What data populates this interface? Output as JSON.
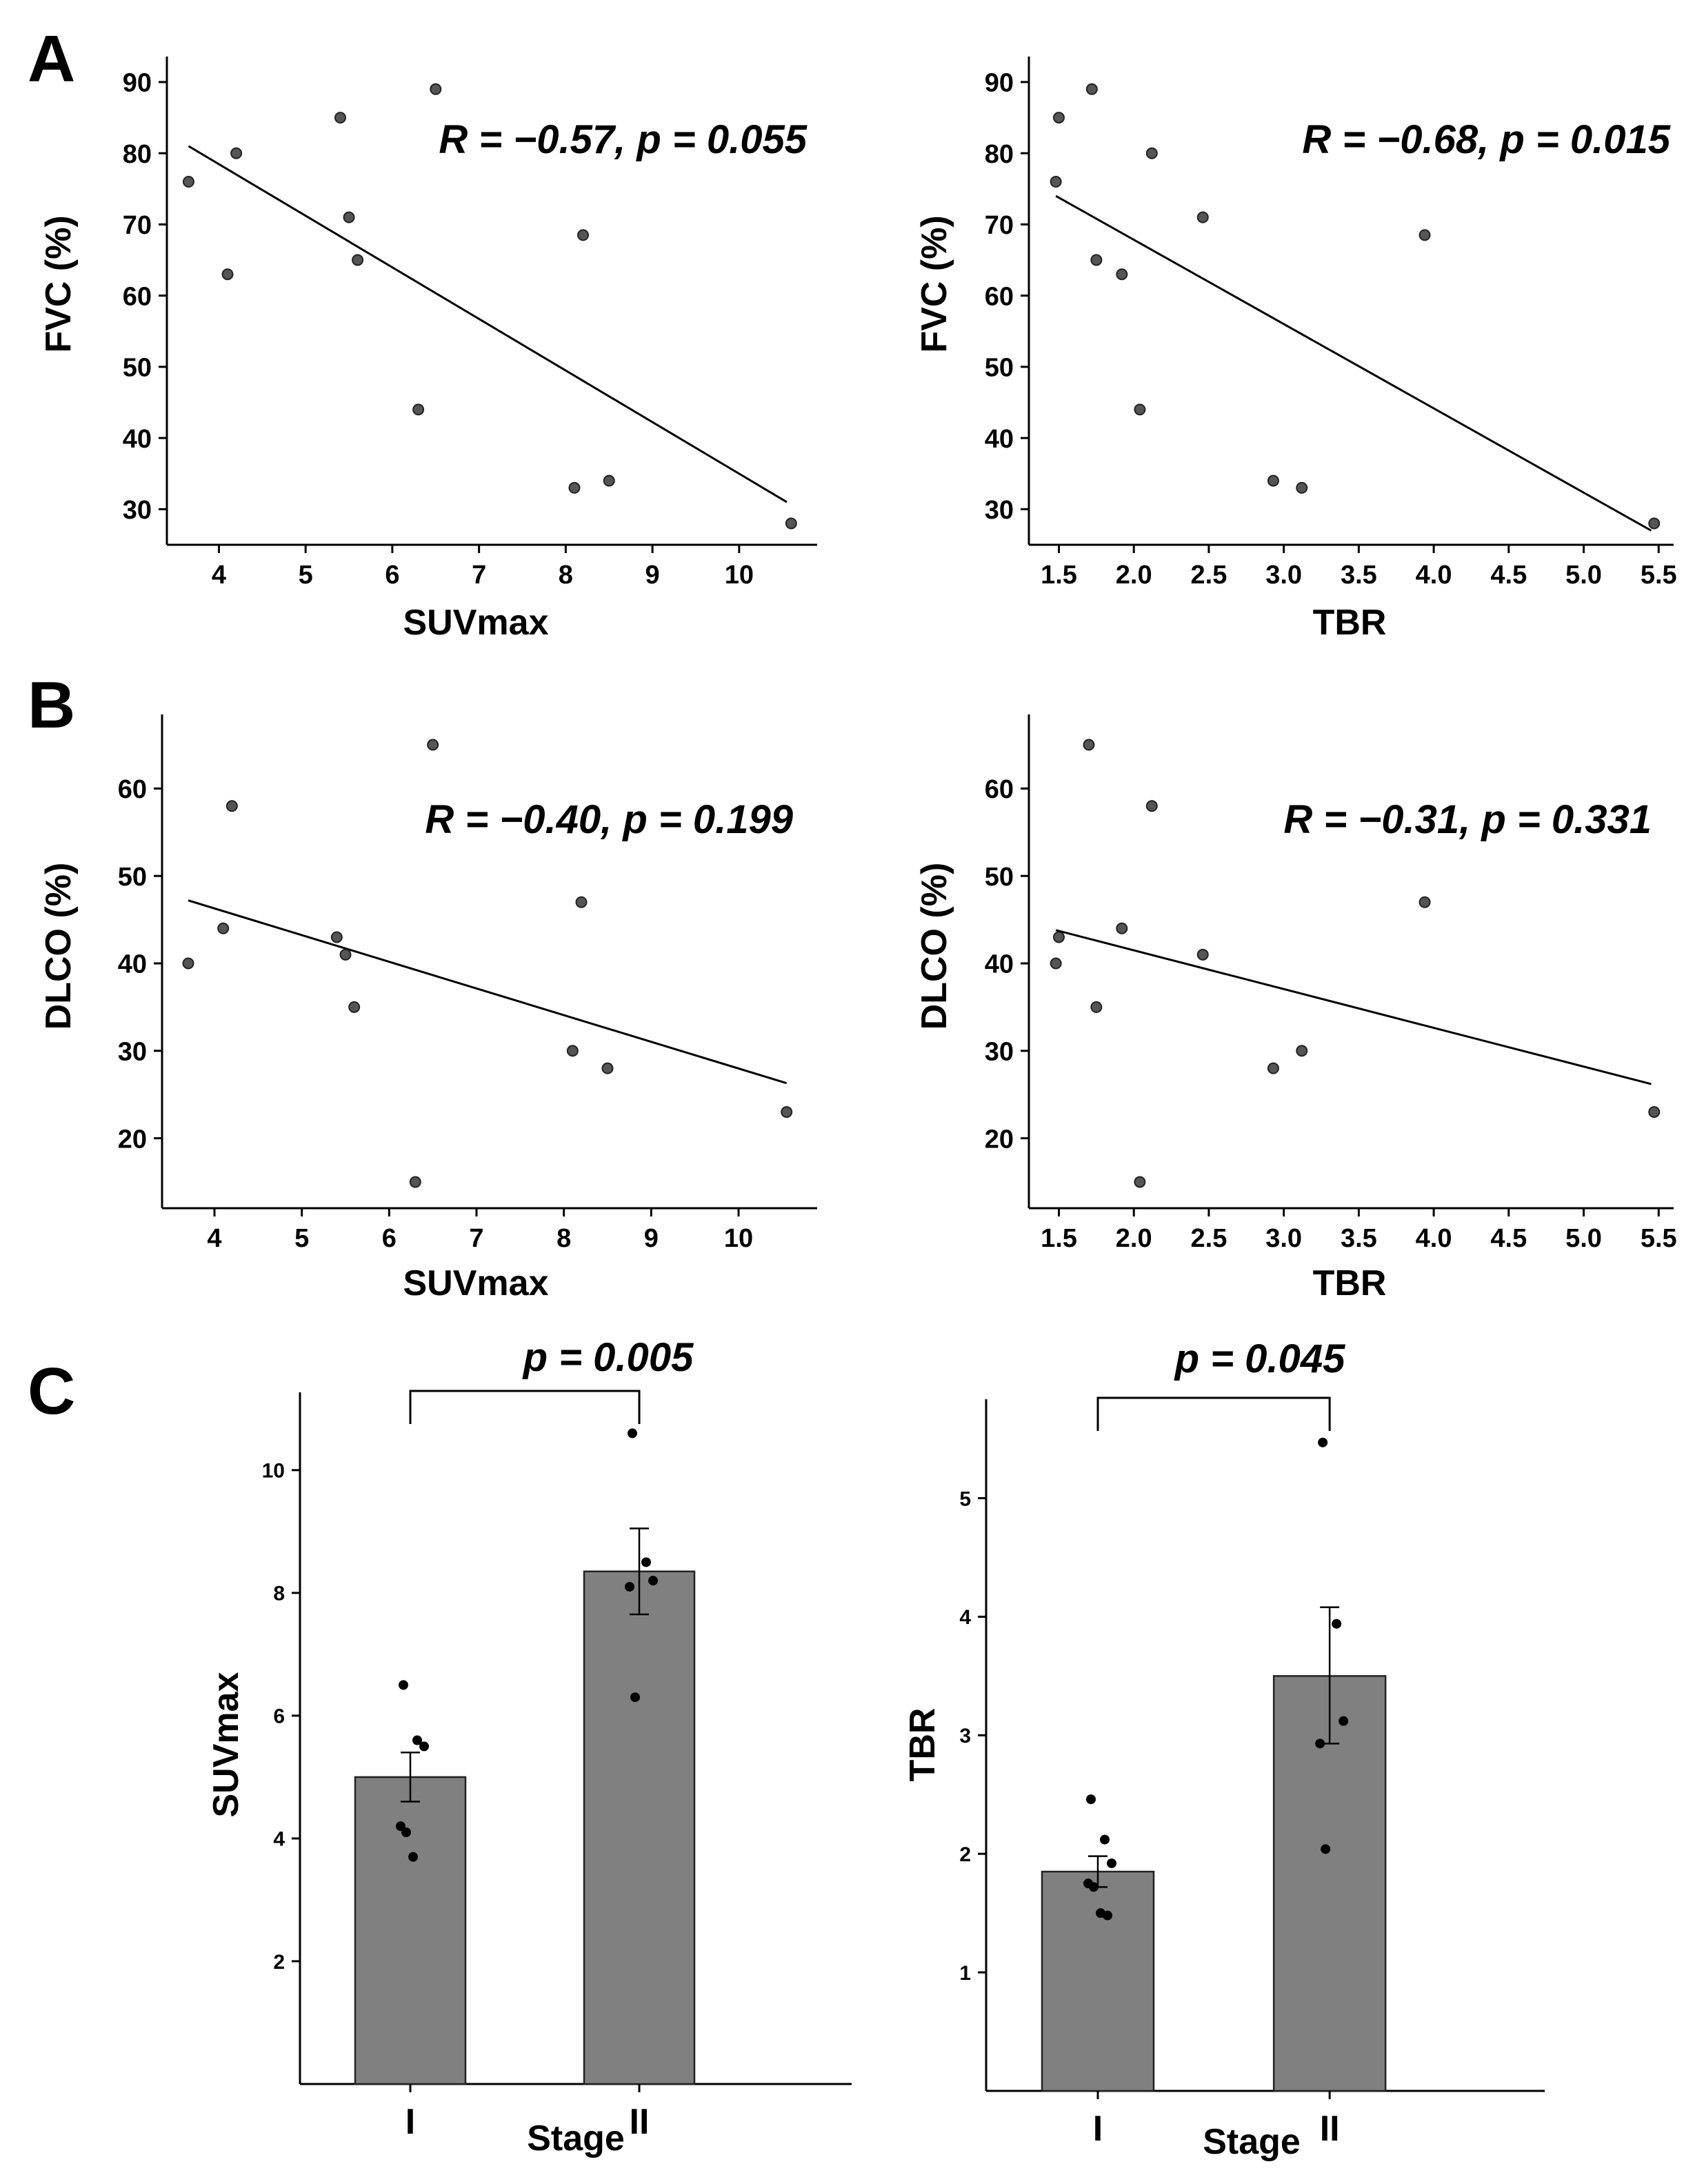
{
  "panel_labels": [
    "A",
    "B",
    "C"
  ],
  "chart_data": [
    {
      "panel": "A",
      "type": "scatter",
      "xlabel": "SUVmax",
      "ylabel": "FVC (%)",
      "annotation": "R = −0.57, p = 0.055",
      "xlim": [
        3.4,
        10.9
      ],
      "ylim": [
        25,
        93
      ],
      "xticks": [
        4,
        5,
        6,
        7,
        8,
        9,
        10
      ],
      "yticks": [
        30,
        40,
        50,
        60,
        70,
        80,
        90
      ],
      "points": [
        {
          "x": 3.65,
          "y": 76
        },
        {
          "x": 4.1,
          "y": 63
        },
        {
          "x": 4.2,
          "y": 80
        },
        {
          "x": 5.4,
          "y": 85
        },
        {
          "x": 5.5,
          "y": 71
        },
        {
          "x": 5.6,
          "y": 65
        },
        {
          "x": 6.3,
          "y": 44
        },
        {
          "x": 6.5,
          "y": 89
        },
        {
          "x": 8.1,
          "y": 33
        },
        {
          "x": 8.2,
          "y": 68.5
        },
        {
          "x": 8.5,
          "y": 34
        },
        {
          "x": 10.6,
          "y": 28
        }
      ],
      "fit_line": [
        {
          "x": 3.65,
          "y": 81
        },
        {
          "x": 10.55,
          "y": 31
        }
      ]
    },
    {
      "panel": "A",
      "type": "scatter",
      "xlabel": "TBR",
      "ylabel": "FVC (%)",
      "annotation": "R = −0.68, p = 0.015",
      "xlim": [
        1.3,
        5.6
      ],
      "ylim": [
        25,
        93
      ],
      "xticks": [
        1.5,
        2.0,
        2.5,
        3.0,
        3.5,
        4.0,
        4.5,
        5.0,
        5.5
      ],
      "xtick_labels": [
        "1.5",
        "2.0",
        "2.5",
        "3.0",
        "3.5",
        "4.0",
        "4.5",
        "5.0",
        "5.5"
      ],
      "yticks": [
        30,
        40,
        50,
        60,
        70,
        80,
        90
      ],
      "points": [
        {
          "x": 1.48,
          "y": 76
        },
        {
          "x": 1.5,
          "y": 85
        },
        {
          "x": 1.72,
          "y": 89
        },
        {
          "x": 1.75,
          "y": 65
        },
        {
          "x": 1.92,
          "y": 63
        },
        {
          "x": 2.04,
          "y": 44
        },
        {
          "x": 2.12,
          "y": 80
        },
        {
          "x": 2.46,
          "y": 71
        },
        {
          "x": 2.93,
          "y": 34
        },
        {
          "x": 3.12,
          "y": 33
        },
        {
          "x": 3.94,
          "y": 68.5
        },
        {
          "x": 5.47,
          "y": 28
        }
      ],
      "fit_line": [
        {
          "x": 1.48,
          "y": 74
        },
        {
          "x": 5.45,
          "y": 27
        }
      ]
    },
    {
      "panel": "B",
      "type": "scatter",
      "xlabel": "SUVmax",
      "ylabel": "DLCO (%)",
      "annotation": "R = −0.40, p = 0.199",
      "xlim": [
        3.4,
        10.9
      ],
      "ylim": [
        12,
        68
      ],
      "xticks": [
        4,
        5,
        6,
        7,
        8,
        9,
        10
      ],
      "yticks": [
        20,
        30,
        40,
        50,
        60
      ],
      "points": [
        {
          "x": 3.7,
          "y": 40
        },
        {
          "x": 4.1,
          "y": 44
        },
        {
          "x": 4.2,
          "y": 58
        },
        {
          "x": 5.4,
          "y": 43
        },
        {
          "x": 5.5,
          "y": 41
        },
        {
          "x": 5.6,
          "y": 35
        },
        {
          "x": 6.3,
          "y": 15
        },
        {
          "x": 6.5,
          "y": 65
        },
        {
          "x": 8.1,
          "y": 30
        },
        {
          "x": 8.2,
          "y": 47
        },
        {
          "x": 8.5,
          "y": 28
        },
        {
          "x": 10.55,
          "y": 23
        }
      ],
      "fit_line": [
        {
          "x": 3.7,
          "y": 47.2
        },
        {
          "x": 10.55,
          "y": 26.3
        }
      ]
    },
    {
      "panel": "B",
      "type": "scatter",
      "xlabel": "TBR",
      "ylabel": "DLCO (%)",
      "annotation": "R = −0.31, p = 0.331",
      "xlim": [
        1.3,
        5.6
      ],
      "ylim": [
        12,
        68
      ],
      "xticks": [
        1.5,
        2.0,
        2.5,
        3.0,
        3.5,
        4.0,
        4.5,
        5.0,
        5.5
      ],
      "xtick_labels": [
        "1.5",
        "2.0",
        "2.5",
        "3.0",
        "3.5",
        "4.0",
        "4.5",
        "5.0",
        "5.5"
      ],
      "yticks": [
        20,
        30,
        40,
        50,
        60
      ],
      "points": [
        {
          "x": 1.48,
          "y": 40
        },
        {
          "x": 1.5,
          "y": 43
        },
        {
          "x": 1.7,
          "y": 65
        },
        {
          "x": 1.75,
          "y": 35
        },
        {
          "x": 1.92,
          "y": 44
        },
        {
          "x": 2.04,
          "y": 15
        },
        {
          "x": 2.12,
          "y": 58
        },
        {
          "x": 2.46,
          "y": 41
        },
        {
          "x": 2.93,
          "y": 28
        },
        {
          "x": 3.12,
          "y": 30
        },
        {
          "x": 3.94,
          "y": 47
        },
        {
          "x": 5.47,
          "y": 23
        }
      ],
      "fit_line": [
        {
          "x": 1.48,
          "y": 43.8
        },
        {
          "x": 5.45,
          "y": 26.2
        }
      ]
    },
    {
      "panel": "C",
      "type": "bar",
      "xlabel": "Stage",
      "ylabel": "SUVmax",
      "annotation": "p = 0.005",
      "categories": [
        "I",
        "II"
      ],
      "values": [
        5.0,
        8.35
      ],
      "error": [
        [
          4.6,
          5.4
        ],
        [
          7.65,
          9.05
        ]
      ],
      "ylim": [
        0,
        11.2
      ],
      "yticks": [
        2,
        4,
        6,
        8,
        10
      ],
      "points": [
        {
          "group": 0,
          "y": 6.5
        },
        {
          "group": 0,
          "y": 5.6
        },
        {
          "group": 0,
          "y": 5.5
        },
        {
          "group": 0,
          "y": 4.2
        },
        {
          "group": 0,
          "y": 4.1
        },
        {
          "group": 0,
          "y": 3.7
        },
        {
          "group": 1,
          "y": 10.6
        },
        {
          "group": 1,
          "y": 8.5
        },
        {
          "group": 1,
          "y": 8.2
        },
        {
          "group": 1,
          "y": 8.1
        },
        {
          "group": 1,
          "y": 6.3
        }
      ]
    },
    {
      "panel": "C",
      "type": "bar",
      "xlabel": "Stage",
      "ylabel": "TBR",
      "annotation": "p = 0.045",
      "categories": [
        "I",
        "II"
      ],
      "values": [
        1.85,
        3.5
      ],
      "error": [
        [
          1.72,
          1.98
        ],
        [
          2.93,
          4.08
        ]
      ],
      "ylim": [
        0,
        5.8
      ],
      "yticks": [
        1,
        2,
        3,
        4,
        5
      ],
      "points": [
        {
          "group": 0,
          "y": 2.46
        },
        {
          "group": 0,
          "y": 2.12
        },
        {
          "group": 0,
          "y": 1.92
        },
        {
          "group": 0,
          "y": 1.75
        },
        {
          "group": 0,
          "y": 1.72
        },
        {
          "group": 0,
          "y": 1.5
        },
        {
          "group": 0,
          "y": 1.48
        },
        {
          "group": 1,
          "y": 5.47
        },
        {
          "group": 1,
          "y": 3.94
        },
        {
          "group": 1,
          "y": 3.12
        },
        {
          "group": 1,
          "y": 2.93
        },
        {
          "group": 1,
          "y": 2.04
        }
      ]
    }
  ]
}
